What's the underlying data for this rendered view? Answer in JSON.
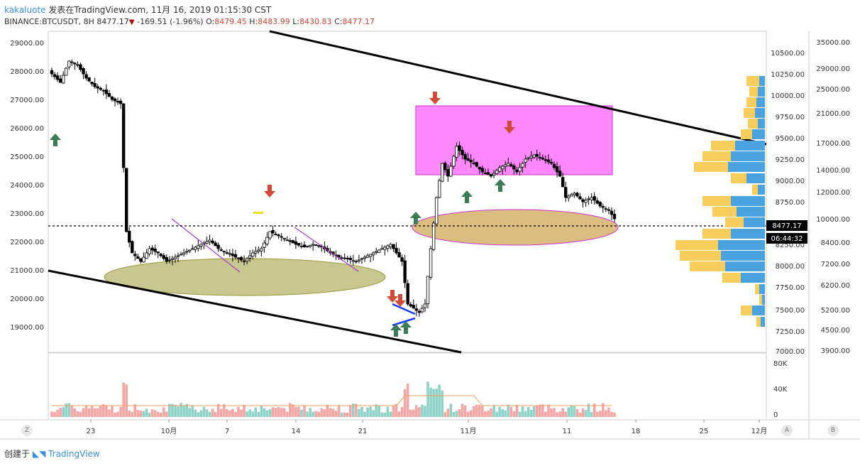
{
  "header": {
    "user": "kakaluote",
    "published": "发表在TradingView.com, 11月 16, 2019 01:15:30 CST",
    "symbol": "BINANCE:BTCUSDT, 8H",
    "last": "8477.17",
    "down_arrow": "▼",
    "change": "-169.51 (-1.96%)",
    "o_label": "O:",
    "o_value": "8479.45",
    "h_label": "H:",
    "h_value": "8483.99",
    "l_label": "L:",
    "l_value": "8430.83",
    "c_label": "C:",
    "c_value": "8477.17"
  },
  "footer": {
    "created_with": "创建于",
    "brand": "TradingView"
  },
  "buttons": {
    "z": "Z",
    "a": "A",
    "b": "B"
  },
  "colors": {
    "up": "#26a69a",
    "down": "#ef5350",
    "trendline": "#000000",
    "zone": "#ff80ff",
    "oval_green": "#b5b562",
    "oval_orange": "#d4b06a",
    "vp_blue": "#4aa3df",
    "vp_yellow": "#f7cd5d"
  },
  "chart_data": {
    "type": "candlestick",
    "x_tick_labels": [
      "23",
      "10月",
      "7",
      "14",
      "21",
      "11月",
      "11",
      "18",
      "25",
      "12月"
    ],
    "y_left_labels": [
      "29000.00",
      "28000.00",
      "27000.00",
      "26000.00",
      "25000.00",
      "24000.00",
      "23000.00",
      "22000.00",
      "21000.00",
      "20000.00",
      "19000.00"
    ],
    "y_right_labels": [
      "10500.00",
      "10250.00",
      "10000.00",
      "9750.00",
      "9500.00",
      "9250.00",
      "9000.00",
      "8750.00",
      "8250.00",
      "8000.00",
      "7750.00",
      "7500.00",
      "7250.00",
      "7000.00"
    ],
    "y_right2_labels": [
      "35000.00",
      "29000.00",
      "25000.00",
      "21000.00",
      "17000.00",
      "14000.00",
      "12000.00",
      "10000.00",
      "8400.00",
      "7200.00",
      "6200.00",
      "5200.00",
      "4500.00",
      "3900.00"
    ],
    "price_tag": "8477.17",
    "countdown_tag": "06:44:32",
    "volume_labels": [
      "80K",
      "40K",
      "0"
    ],
    "price_path": [
      [
        0,
        10250
      ],
      [
        3,
        10150
      ],
      [
        6,
        10400
      ],
      [
        9,
        10350
      ],
      [
        12,
        10200
      ],
      [
        15,
        10100
      ],
      [
        18,
        10050
      ],
      [
        21,
        9950
      ],
      [
        24,
        9900
      ],
      [
        26,
        8400
      ],
      [
        28,
        8150
      ],
      [
        31,
        8050
      ],
      [
        34,
        8200
      ],
      [
        37,
        8150
      ],
      [
        40,
        8050
      ],
      [
        43,
        8100
      ],
      [
        46,
        8150
      ],
      [
        49,
        8200
      ],
      [
        52,
        8250
      ],
      [
        55,
        8300
      ],
      [
        58,
        8200
      ],
      [
        61,
        8150
      ],
      [
        64,
        8100
      ],
      [
        67,
        8050
      ],
      [
        70,
        8150
      ],
      [
        73,
        8200
      ],
      [
        76,
        8400
      ],
      [
        79,
        8350
      ],
      [
        82,
        8300
      ],
      [
        85,
        8250
      ],
      [
        88,
        8220
      ],
      [
        91,
        8250
      ],
      [
        94,
        8220
      ],
      [
        97,
        8150
      ],
      [
        100,
        8100
      ],
      [
        103,
        8080
      ],
      [
        106,
        8050
      ],
      [
        109,
        8100
      ],
      [
        112,
        8150
      ],
      [
        115,
        8200
      ],
      [
        118,
        8250
      ],
      [
        120,
        8150
      ],
      [
        122,
        8050
      ],
      [
        124,
        7550
      ],
      [
        126,
        7500
      ],
      [
        128,
        7450
      ],
      [
        130,
        7550
      ],
      [
        132,
        8200
      ],
      [
        134,
        8800
      ],
      [
        136,
        9200
      ],
      [
        138,
        9050
      ],
      [
        141,
        9400
      ],
      [
        144,
        9250
      ],
      [
        147,
        9200
      ],
      [
        150,
        9100
      ],
      [
        153,
        9050
      ],
      [
        156,
        9150
      ],
      [
        159,
        9200
      ],
      [
        162,
        9100
      ],
      [
        165,
        9250
      ],
      [
        168,
        9300
      ],
      [
        171,
        9250
      ],
      [
        174,
        9200
      ],
      [
        177,
        9050
      ],
      [
        179,
        8800
      ],
      [
        182,
        8850
      ],
      [
        185,
        8750
      ],
      [
        188,
        8800
      ],
      [
        191,
        8700
      ],
      [
        194,
        8650
      ],
      [
        196,
        8550
      ]
    ]
  }
}
